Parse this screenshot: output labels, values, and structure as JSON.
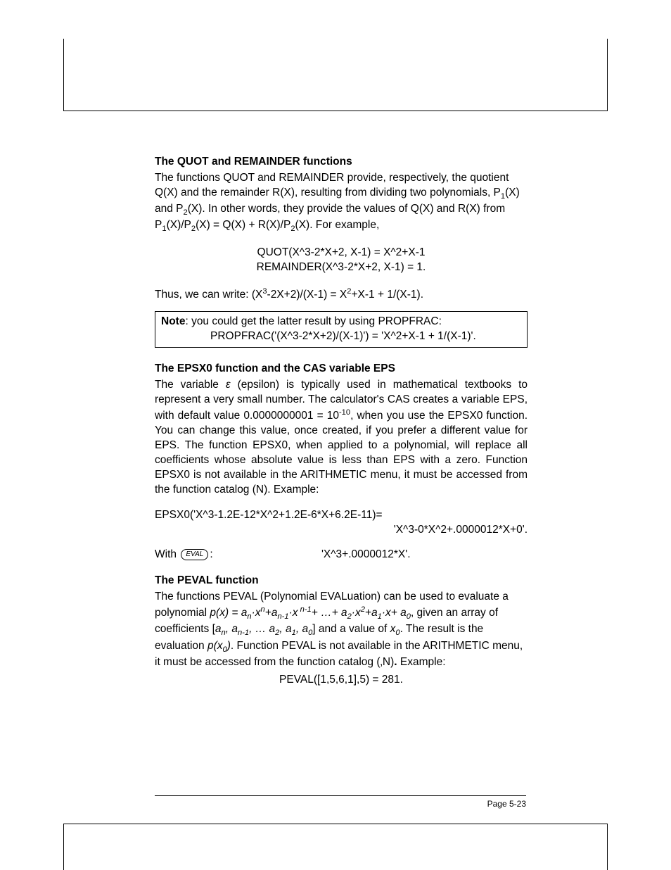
{
  "section1": {
    "heading": "The QUOT and REMAINDER functions",
    "p1_a": "The functions QUOT and REMAINDER provide, respectively, the quotient Q(X) and the remainder R(X), resulting from dividing two polynomials, P",
    "p1_b": "(X) and P",
    "p1_c": "(X).  In other words, they provide the values of Q(X) and R(X) from P",
    "p1_d": "(X)/P",
    "p1_e": "(X) = Q(X) + R(X)/P",
    "p1_f": "(X).  For example,",
    "eq1": "QUOT(X^3-2*X+2, X-1) = X^2+X-1",
    "eq2": "REMAINDER(X^3-2*X+2, X-1) = 1.",
    "thus_a": "Thus, we can write:    (X",
    "thus_b": "-2X+2)/(X-1) = X",
    "thus_c": "+X-1 + 1/(X-1)."
  },
  "note": {
    "label": "Note",
    "line1": ": you could get the latter result by using PROPFRAC:",
    "line2": "PROPFRAC('(X^3-2*X+2)/(X-1)') =  'X^2+X-1 + 1/(X-1)'."
  },
  "section2": {
    "heading": "The EPSX0 function and the CAS variable EPS",
    "p_a": "The variable ",
    "eps": "ε",
    "p_b": " (epsilon) is typically used in mathematical textbooks to represent a very small number.  The calculator's CAS creates a variable EPS, with default value 0.0000000001 = 10",
    "p_c": ", when you use the EPSX0 function.  You can change this value, once created, if you prefer a different value for EPS.  The function EPSX0, when applied to a polynomial, will replace all coefficients whose absolute value is less than EPS with a zero.  Function EPSX0 is not available in the ARITHMETIC menu, it must be accessed from the function catalog (N).  Example:",
    "exp_neg10": "-10",
    "ex1": "EPSX0('X^3-1.2E-12*X^2+1.2E-6*X+6.2E-11)=",
    "ex1_res": "'X^3-0*X^2+.0000012*X+0'.",
    "with": "With ",
    "eval_key": "EVAL",
    "colon": ":",
    "ex2_res": "'X^3+.0000012*X'."
  },
  "section3": {
    "heading": "The PEVAL function",
    "p_a": "The functions PEVAL (Polynomial EVALuation) can be used to evaluate a polynomial  ",
    "poly_a": "p(x) = a",
    "poly_b": "·x",
    "poly_c": "+a",
    "poly_d": "·x",
    "poly_e": "+ …+ a",
    "poly_f": "·x",
    "poly_g": "+a",
    "poly_h": "·x+ a",
    "p_b": ", given an array of coefficients [",
    "coef_a": "a",
    "coef_sep": ", ",
    "coef_b": "a",
    "coef_dots": ", … ",
    "coef_c": "a",
    "coef_d": "a",
    "coef_e": "a",
    "p_c": "] and a value of ",
    "x0": "x",
    "p_d": ".  The result is the evaluation ",
    "px0": "p(x",
    "px0_b": ")",
    "p_e": ". Function PEVAL is not available in the ARITHMETIC menu, it must be accessed from the function catalog (‚N)",
    "p_f": "    Example:",
    "dot": ".",
    "ex": "PEVAL([1,5,6,1],5) = 281.",
    "sub_n": "n",
    "sub_n1": "n-1",
    "sup_n1": " n-1",
    "sub_2": "2",
    "sup_2": "2",
    "sub_1": "1",
    "sub_0": "0",
    "sup_n": "n"
  },
  "footer": {
    "page": "Page 5-23"
  }
}
